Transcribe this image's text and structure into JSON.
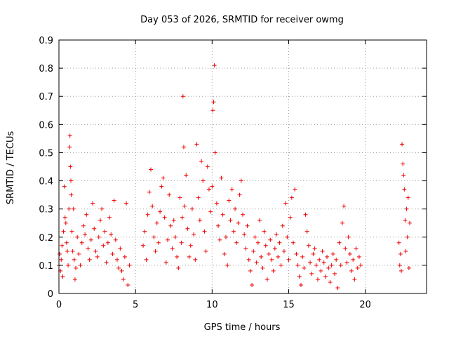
{
  "chart_data": {
    "type": "scatter",
    "title": "Day 053 of 2026, SRMTID for receiver owmg",
    "xlabel": "GPS time / hours",
    "ylabel": "SRMTID / TECUs",
    "xlim": [
      0,
      24
    ],
    "ylim": [
      0,
      0.9
    ],
    "xticks": [
      0,
      5,
      10,
      15,
      20
    ],
    "yticks": [
      0,
      0.1,
      0.2,
      0.3,
      0.4,
      0.5,
      0.6,
      0.7,
      0.8,
      0.9
    ],
    "grid": true,
    "marker": "+",
    "color": "#ee0000",
    "series": [
      {
        "name": "SRMTID",
        "points": [
          [
            0.0,
            0.1
          ],
          [
            0.05,
            0.14
          ],
          [
            0.1,
            0.08
          ],
          [
            0.15,
            0.12
          ],
          [
            0.2,
            0.17
          ],
          [
            0.25,
            0.06
          ],
          [
            0.3,
            0.22
          ],
          [
            0.35,
            0.38
          ],
          [
            0.4,
            0.27
          ],
          [
            0.45,
            0.25
          ],
          [
            0.5,
            0.18
          ],
          [
            0.55,
            0.15
          ],
          [
            0.6,
            0.1
          ],
          [
            0.65,
            0.3
          ],
          [
            0.7,
            0.52
          ],
          [
            0.72,
            0.56
          ],
          [
            0.75,
            0.45
          ],
          [
            0.78,
            0.4
          ],
          [
            0.8,
            0.35
          ],
          [
            0.85,
            0.22
          ],
          [
            0.9,
            0.15
          ],
          [
            0.95,
            0.3
          ],
          [
            1.0,
            0.12
          ],
          [
            1.05,
            0.05
          ],
          [
            1.1,
            0.09
          ],
          [
            1.2,
            0.2
          ],
          [
            1.3,
            0.14
          ],
          [
            1.4,
            0.1
          ],
          [
            1.5,
            0.18
          ],
          [
            1.6,
            0.24
          ],
          [
            1.7,
            0.21
          ],
          [
            1.8,
            0.28
          ],
          [
            1.9,
            0.16
          ],
          [
            2.0,
            0.12
          ],
          [
            2.1,
            0.19
          ],
          [
            2.2,
            0.32
          ],
          [
            2.3,
            0.23
          ],
          [
            2.4,
            0.15
          ],
          [
            2.5,
            0.13
          ],
          [
            2.6,
            0.2
          ],
          [
            2.7,
            0.26
          ],
          [
            2.8,
            0.3
          ],
          [
            2.9,
            0.17
          ],
          [
            3.0,
            0.22
          ],
          [
            3.1,
            0.11
          ],
          [
            3.2,
            0.18
          ],
          [
            3.3,
            0.27
          ],
          [
            3.4,
            0.21
          ],
          [
            3.5,
            0.14
          ],
          [
            3.6,
            0.33
          ],
          [
            3.7,
            0.19
          ],
          [
            3.8,
            0.12
          ],
          [
            3.9,
            0.09
          ],
          [
            4.0,
            0.16
          ],
          [
            4.1,
            0.08
          ],
          [
            4.2,
            0.05
          ],
          [
            4.3,
            0.13
          ],
          [
            4.4,
            0.32
          ],
          [
            4.5,
            0.03
          ],
          [
            4.6,
            0.1
          ],
          [
            5.5,
            0.17
          ],
          [
            5.6,
            0.22
          ],
          [
            5.7,
            0.12
          ],
          [
            5.8,
            0.28
          ],
          [
            5.9,
            0.36
          ],
          [
            6.0,
            0.44
          ],
          [
            6.1,
            0.31
          ],
          [
            6.2,
            0.2
          ],
          [
            6.3,
            0.15
          ],
          [
            6.4,
            0.25
          ],
          [
            6.5,
            0.18
          ],
          [
            6.6,
            0.29
          ],
          [
            6.7,
            0.38
          ],
          [
            6.8,
            0.41
          ],
          [
            6.9,
            0.27
          ],
          [
            7.0,
            0.11
          ],
          [
            7.1,
            0.19
          ],
          [
            7.2,
            0.35
          ],
          [
            7.3,
            0.24
          ],
          [
            7.4,
            0.16
          ],
          [
            7.5,
            0.26
          ],
          [
            7.6,
            0.2
          ],
          [
            7.7,
            0.13
          ],
          [
            7.8,
            0.09
          ],
          [
            7.9,
            0.34
          ],
          [
            8.0,
            0.18
          ],
          [
            8.05,
            0.27
          ],
          [
            8.1,
            0.7
          ],
          [
            8.15,
            0.52
          ],
          [
            8.2,
            0.31
          ],
          [
            8.3,
            0.42
          ],
          [
            8.4,
            0.23
          ],
          [
            8.5,
            0.13
          ],
          [
            8.6,
            0.17
          ],
          [
            8.7,
            0.3
          ],
          [
            8.8,
            0.21
          ],
          [
            8.9,
            0.12
          ],
          [
            9.0,
            0.53
          ],
          [
            9.1,
            0.34
          ],
          [
            9.2,
            0.26
          ],
          [
            9.3,
            0.47
          ],
          [
            9.4,
            0.4
          ],
          [
            9.5,
            0.22
          ],
          [
            9.6,
            0.15
          ],
          [
            9.7,
            0.45
          ],
          [
            9.8,
            0.37
          ],
          [
            9.9,
            0.29
          ],
          [
            10.0,
            0.38
          ],
          [
            10.05,
            0.65
          ],
          [
            10.1,
            0.68
          ],
          [
            10.15,
            0.81
          ],
          [
            10.2,
            0.5
          ],
          [
            10.3,
            0.32
          ],
          [
            10.4,
            0.24
          ],
          [
            10.5,
            0.19
          ],
          [
            10.6,
            0.41
          ],
          [
            10.7,
            0.28
          ],
          [
            10.8,
            0.14
          ],
          [
            10.9,
            0.2
          ],
          [
            11.0,
            0.1
          ],
          [
            11.1,
            0.33
          ],
          [
            11.2,
            0.26
          ],
          [
            11.3,
            0.37
          ],
          [
            11.4,
            0.22
          ],
          [
            11.5,
            0.3
          ],
          [
            11.6,
            0.18
          ],
          [
            11.7,
            0.25
          ],
          [
            11.8,
            0.35
          ],
          [
            11.9,
            0.4
          ],
          [
            12.0,
            0.28
          ],
          [
            12.1,
            0.21
          ],
          [
            12.2,
            0.16
          ],
          [
            12.3,
            0.24
          ],
          [
            12.4,
            0.12
          ],
          [
            12.5,
            0.08
          ],
          [
            12.6,
            0.03
          ],
          [
            12.7,
            0.15
          ],
          [
            12.8,
            0.2
          ],
          [
            12.9,
            0.11
          ],
          [
            13.0,
            0.18
          ],
          [
            13.1,
            0.26
          ],
          [
            13.2,
            0.13
          ],
          [
            13.3,
            0.09
          ],
          [
            13.4,
            0.22
          ],
          [
            13.5,
            0.17
          ],
          [
            13.6,
            0.05
          ],
          [
            13.7,
            0.14
          ],
          [
            13.8,
            0.19
          ],
          [
            13.9,
            0.12
          ],
          [
            14.0,
            0.08
          ],
          [
            14.1,
            0.16
          ],
          [
            14.2,
            0.21
          ],
          [
            14.3,
            0.13
          ],
          [
            14.4,
            0.18
          ],
          [
            14.5,
            0.1
          ],
          [
            14.6,
            0.24
          ],
          [
            14.7,
            0.15
          ],
          [
            14.8,
            0.32
          ],
          [
            14.9,
            0.2
          ],
          [
            15.0,
            0.12
          ],
          [
            15.1,
            0.27
          ],
          [
            15.2,
            0.34
          ],
          [
            15.3,
            0.18
          ],
          [
            15.4,
            0.37
          ],
          [
            15.5,
            0.14
          ],
          [
            15.6,
            0.1
          ],
          [
            15.7,
            0.06
          ],
          [
            15.8,
            0.03
          ],
          [
            15.9,
            0.13
          ],
          [
            16.0,
            0.09
          ],
          [
            16.1,
            0.28
          ],
          [
            16.2,
            0.22
          ],
          [
            16.3,
            0.17
          ],
          [
            16.4,
            0.11
          ],
          [
            16.5,
            0.07
          ],
          [
            16.6,
            0.14
          ],
          [
            16.7,
            0.16
          ],
          [
            16.8,
            0.1
          ],
          [
            16.9,
            0.05
          ],
          [
            17.0,
            0.12
          ],
          [
            17.1,
            0.08
          ],
          [
            17.2,
            0.15
          ],
          [
            17.3,
            0.11
          ],
          [
            17.4,
            0.06
          ],
          [
            17.5,
            0.13
          ],
          [
            17.6,
            0.09
          ],
          [
            17.7,
            0.04
          ],
          [
            17.8,
            0.1
          ],
          [
            17.9,
            0.14
          ],
          [
            18.0,
            0.07
          ],
          [
            18.1,
            0.12
          ],
          [
            18.2,
            0.02
          ],
          [
            18.3,
            0.18
          ],
          [
            18.4,
            0.1
          ],
          [
            18.5,
            0.25
          ],
          [
            18.6,
            0.31
          ],
          [
            18.7,
            0.16
          ],
          [
            18.8,
            0.11
          ],
          [
            18.9,
            0.2
          ],
          [
            19.0,
            0.14
          ],
          [
            19.1,
            0.08
          ],
          [
            19.2,
            0.12
          ],
          [
            19.3,
            0.05
          ],
          [
            19.4,
            0.16
          ],
          [
            19.5,
            0.09
          ],
          [
            19.6,
            0.13
          ],
          [
            19.7,
            0.1
          ],
          [
            22.2,
            0.18
          ],
          [
            22.25,
            0.1
          ],
          [
            22.3,
            0.14
          ],
          [
            22.35,
            0.08
          ],
          [
            22.4,
            0.53
          ],
          [
            22.45,
            0.46
          ],
          [
            22.5,
            0.42
          ],
          [
            22.55,
            0.37
          ],
          [
            22.6,
            0.26
          ],
          [
            22.65,
            0.15
          ],
          [
            22.7,
            0.3
          ],
          [
            22.75,
            0.2
          ],
          [
            22.8,
            0.34
          ],
          [
            22.85,
            0.09
          ],
          [
            22.9,
            0.25
          ]
        ]
      }
    ]
  }
}
